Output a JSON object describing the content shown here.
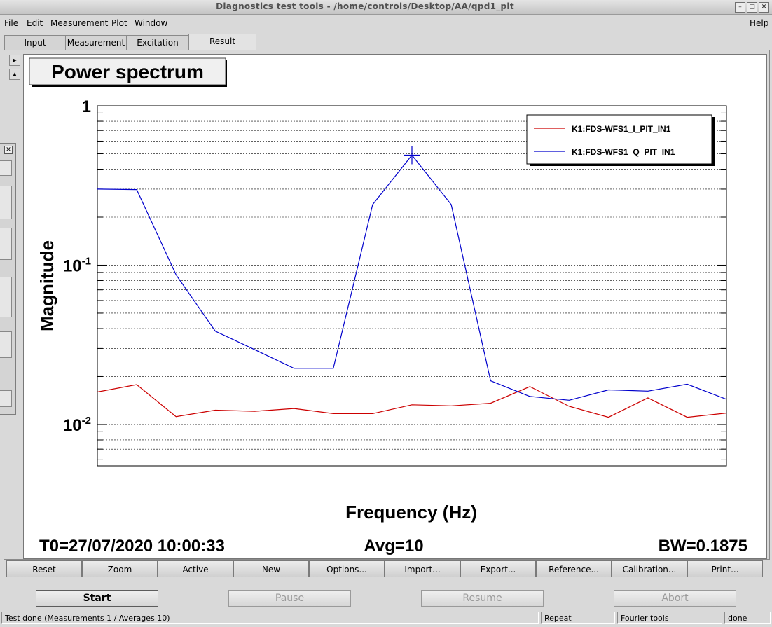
{
  "window": {
    "title": "Diagnostics test tools - /home/controls/Desktop/AA/qpd1_pit"
  },
  "window_buttons": [
    "–",
    "□",
    "✕"
  ],
  "menu": {
    "file": "File",
    "edit": "Edit",
    "measurement": "Measurement",
    "plot": "Plot",
    "window": "Window",
    "help": "Help"
  },
  "tabs": [
    "Input",
    "Measurement",
    "Excitation",
    "Result"
  ],
  "active_tab": "Result",
  "plot": {
    "title": "Power spectrum",
    "t0": "T0=27/07/2020 10:00:33",
    "avg": "Avg=10",
    "bw": "BW=0.1875"
  },
  "chart_data": {
    "type": "line",
    "xlabel": "Frequency (Hz)",
    "ylabel": "Magnitude",
    "yscale": "log",
    "ylim": [
      0.0055,
      1.0
    ],
    "ytick_labels": [
      {
        "value": 1,
        "base": "1",
        "exp": ""
      },
      {
        "value": 0.1,
        "base": "10",
        "exp": "-1"
      },
      {
        "value": 0.01,
        "base": "10",
        "exp": "-2"
      }
    ],
    "grid": true,
    "legend": "top-right",
    "series": [
      {
        "name": "K1:FDS-WFS1_I_PIT_IN1",
        "color": "#cc0000",
        "values": [
          0.016,
          0.0178,
          0.0112,
          0.0123,
          0.0121,
          0.0126,
          0.0117,
          0.0117,
          0.0133,
          0.0131,
          0.0136,
          0.0173,
          0.013,
          0.0111,
          0.0147,
          0.0111,
          0.0118
        ]
      },
      {
        "name": "K1:FDS-WFS1_Q_PIT_IN1",
        "color": "#0000cc",
        "values": [
          0.3,
          0.298,
          0.087,
          0.0385,
          0.0295,
          0.0225,
          0.0225,
          0.24,
          0.49,
          0.24,
          0.0188,
          0.015,
          0.0142,
          0.0165,
          0.0162,
          0.0179,
          0.0144
        ]
      }
    ]
  },
  "plot_buttons": [
    "Reset",
    "Zoom",
    "Active",
    "New",
    "Options...",
    "Import...",
    "Export...",
    "Reference...",
    "Calibration...",
    "Print..."
  ],
  "control_buttons": {
    "start": "Start",
    "pause": "Pause",
    "resume": "Resume",
    "abort": "Abort"
  },
  "status": {
    "message": "Test done (Measurements 1 / Averages 10)",
    "mode": "Repeat",
    "tool": "Fourier tools",
    "state": "done"
  },
  "colors": {
    "accent_red": "#cc0000",
    "accent_blue": "#0000cc",
    "panel": "#d9d9d9"
  }
}
